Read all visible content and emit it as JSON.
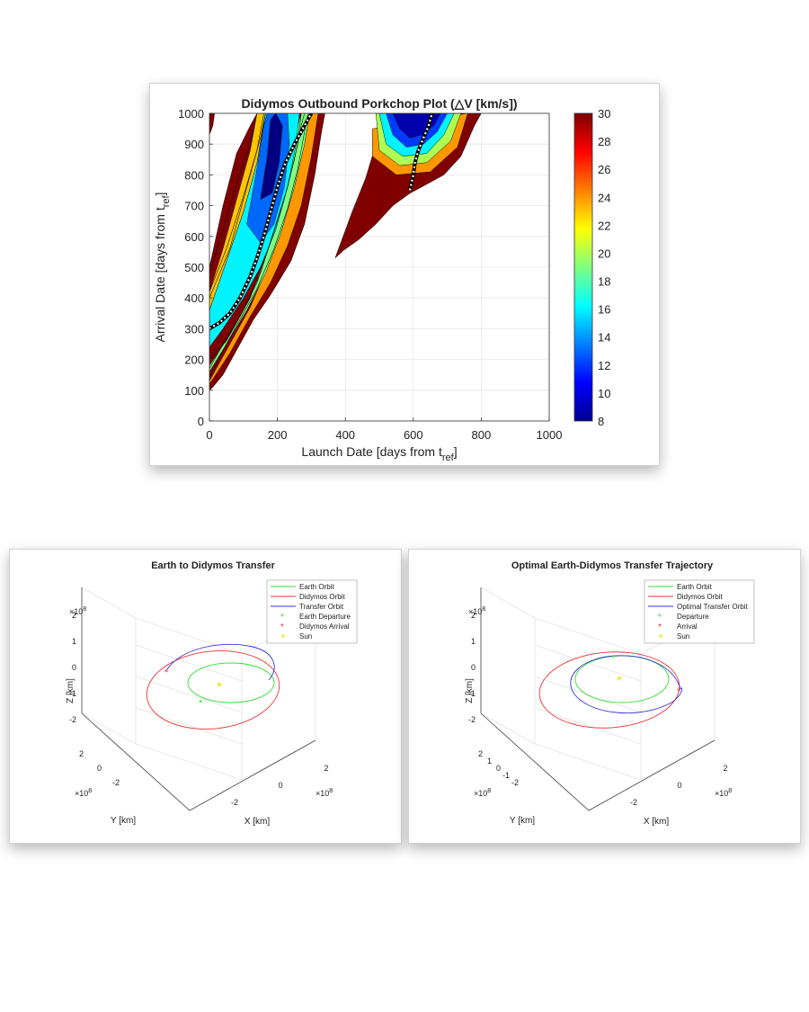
{
  "chart_data": [
    {
      "type": "heatmap",
      "title": "Didymos Outbound Porkchop Plot (△V [km/s])",
      "xlabel_main": "Launch Date [days from t",
      "xlabel_sub": "ref",
      "xlabel_close": "]",
      "ylabel_main": "Arrival Date [days from t",
      "ylabel_sub": "ref",
      "ylabel_close": "]",
      "xlim": [
        0,
        1000
      ],
      "ylim": [
        0,
        1000
      ],
      "xticks": [
        0,
        200,
        400,
        600,
        800,
        1000
      ],
      "yticks": [
        0,
        100,
        200,
        300,
        400,
        500,
        600,
        700,
        800,
        900,
        1000
      ],
      "grid": true,
      "colorbar": {
        "min": 8,
        "max": 30,
        "ticks": [
          8,
          10,
          12,
          14,
          16,
          18,
          20,
          22,
          24,
          26,
          28,
          30
        ],
        "colormap": "jet"
      },
      "regions": [
        {
          "name": "left band",
          "value": 30,
          "points": [
            [
              0,
              100
            ],
            [
              0,
              500
            ],
            [
              40,
              700
            ],
            [
              80,
              870
            ],
            [
              120,
              960
            ],
            [
              140,
              1000
            ],
            [
              340,
              1000
            ],
            [
              330,
              940
            ],
            [
              310,
              800
            ],
            [
              280,
              640
            ],
            [
              240,
              520
            ],
            [
              180,
              410
            ],
            [
              130,
              330
            ],
            [
              80,
              230
            ],
            [
              40,
              150
            ],
            [
              10,
              110
            ]
          ]
        },
        {
          "name": "left corner",
          "value": 30,
          "points": [
            [
              0,
              930
            ],
            [
              0,
              1000
            ],
            [
              15,
              1000
            ],
            [
              10,
              960
            ]
          ]
        },
        {
          "name": "right band",
          "value": 30,
          "points": [
            [
              370,
              530
            ],
            [
              420,
              680
            ],
            [
              460,
              790
            ],
            [
              490,
              900
            ],
            [
              510,
              1000
            ],
            [
              800,
              1000
            ],
            [
              780,
              960
            ],
            [
              740,
              860
            ],
            [
              690,
              800
            ],
            [
              640,
              770
            ],
            [
              590,
              740
            ],
            [
              540,
              700
            ],
            [
              490,
              640
            ],
            [
              440,
              590
            ],
            [
              395,
              555
            ]
          ]
        }
      ],
      "contours_left": [
        {
          "value": 26,
          "points": [
            [
              0,
              140
            ],
            [
              40,
              230
            ],
            [
              90,
              330
            ],
            [
              140,
              430
            ],
            [
              190,
              560
            ],
            [
              230,
              690
            ],
            [
              260,
              820
            ],
            [
              280,
              940
            ],
            [
              290,
              1000
            ]
          ]
        },
        {
          "value": 22,
          "points": [
            [
              0,
              170
            ],
            [
              40,
              250
            ],
            [
              90,
              340
            ],
            [
              140,
              450
            ],
            [
              180,
              580
            ],
            [
              220,
              720
            ],
            [
              250,
              850
            ],
            [
              270,
              960
            ],
            [
              280,
              1000
            ]
          ]
        },
        {
          "value": 18,
          "points": [
            [
              0,
              200
            ],
            [
              50,
              260
            ],
            [
              100,
              360
            ],
            [
              150,
              480
            ],
            [
              190,
              620
            ],
            [
              230,
              760
            ],
            [
              260,
              900
            ],
            [
              270,
              1000
            ]
          ]
        },
        {
          "value": 14,
          "points": [
            [
              0,
              480
            ],
            [
              40,
              620
            ],
            [
              80,
              770
            ],
            [
              120,
              900
            ],
            [
              140,
              1000
            ]
          ]
        },
        {
          "value": 20,
          "points": [
            [
              0,
              420
            ],
            [
              50,
              560
            ],
            [
              100,
              730
            ],
            [
              140,
              880
            ],
            [
              160,
              1000
            ]
          ]
        },
        {
          "value": 25,
          "points": [
            [
              0,
              400
            ],
            [
              60,
              560
            ],
            [
              110,
              760
            ],
            [
              150,
              920
            ],
            [
              165,
              1000
            ]
          ]
        }
      ],
      "min_region_left": {
        "value": 8,
        "points": [
          [
            150,
            720
          ],
          [
            170,
            860
          ],
          [
            180,
            980
          ],
          [
            195,
            1000
          ],
          [
            215,
            960
          ],
          [
            205,
            840
          ],
          [
            185,
            740
          ]
        ]
      },
      "mid_region_left": {
        "value": 13,
        "points": [
          [
            110,
            640
          ],
          [
            140,
            820
          ],
          [
            160,
            960
          ],
          [
            170,
            1000
          ],
          [
            230,
            1000
          ],
          [
            235,
            900
          ],
          [
            220,
            760
          ],
          [
            190,
            640
          ],
          [
            150,
            580
          ]
        ]
      },
      "min_region_right": {
        "value": 9,
        "points": [
          [
            540,
            1000
          ],
          [
            560,
            950
          ],
          [
            590,
            920
          ],
          [
            625,
            930
          ],
          [
            660,
            960
          ],
          [
            680,
            1000
          ]
        ]
      },
      "rings_right": [
        {
          "value": 12,
          "points": [
            [
              520,
              1000
            ],
            [
              540,
              930
            ],
            [
              580,
              890
            ],
            [
              630,
              900
            ],
            [
              670,
              940
            ],
            [
              700,
              1000
            ]
          ]
        },
        {
          "value": 16,
          "points": [
            [
              500,
              1000
            ],
            [
              520,
              900
            ],
            [
              570,
              860
            ],
            [
              640,
              870
            ],
            [
              690,
              930
            ],
            [
              720,
              1000
            ]
          ]
        },
        {
          "value": 20,
          "points": [
            [
              490,
              1000
            ],
            [
              500,
              880
            ],
            [
              560,
              830
            ],
            [
              640,
              840
            ],
            [
              710,
              910
            ],
            [
              740,
              1000
            ]
          ]
        },
        {
          "value": 24,
          "points": [
            [
              480,
              950
            ],
            [
              480,
              860
            ],
            [
              550,
              800
            ],
            [
              650,
              810
            ],
            [
              730,
              890
            ],
            [
              760,
              1000
            ]
          ]
        }
      ],
      "optimal_left": [
        [
          0,
          300
        ],
        [
          30,
          320
        ],
        [
          60,
          350
        ],
        [
          90,
          400
        ],
        [
          120,
          470
        ],
        [
          140,
          530
        ],
        [
          160,
          600
        ],
        [
          180,
          680
        ],
        [
          200,
          760
        ],
        [
          220,
          830
        ],
        [
          250,
          900
        ],
        [
          280,
          960
        ],
        [
          300,
          1000
        ]
      ],
      "optimal_right": [
        [
          590,
          750
        ],
        [
          600,
          800
        ],
        [
          605,
          840
        ],
        [
          615,
          880
        ],
        [
          630,
          920
        ],
        [
          645,
          960
        ],
        [
          655,
          1000
        ]
      ]
    },
    {
      "type": "line",
      "title": "Earth to Didymos Transfer",
      "xlabel": "X [km]",
      "ylabel": "Y [km]",
      "zlabel": "Z [km]",
      "scale_label": "×10",
      "scale_exp": "8",
      "xticks": [
        "-2",
        "0",
        "2"
      ],
      "yticks": [
        "-2",
        "0",
        "2"
      ],
      "zticks": [
        "2",
        "1",
        "0",
        "-1",
        "-2"
      ],
      "legend": [
        "Earth Orbit",
        "Didymos Orbit",
        "Transfer Orbit",
        "Earth Departure",
        "Didymos Arrival",
        "Sun"
      ],
      "colors": {
        "earth": "#33dd33",
        "didymos": "#ee3333",
        "transfer": "#3333dd",
        "sun": "#f3ee60"
      }
    },
    {
      "type": "line",
      "title": "Optimal Earth-Didymos Transfer Trajectory",
      "xlabel": "X [km]",
      "ylabel": "Y [km]",
      "zlabel": "Z [km]",
      "scale_label": "×10",
      "scale_exp": "8",
      "xticks": [
        "-2",
        "0",
        "2"
      ],
      "yticks": [
        "-2",
        "-1",
        "0",
        "1",
        "2"
      ],
      "zticks": [
        "2",
        "1",
        "0",
        "-1",
        "-2"
      ],
      "legend": [
        "Earth Orbit",
        "Didymos Orbit",
        "Optimal Transfer Orbit",
        "Departure",
        "Arrival",
        "Sun"
      ],
      "colors": {
        "earth": "#33dd33",
        "didymos": "#ee3333",
        "transfer": "#3333dd",
        "sun": "#f3ee60"
      }
    }
  ]
}
